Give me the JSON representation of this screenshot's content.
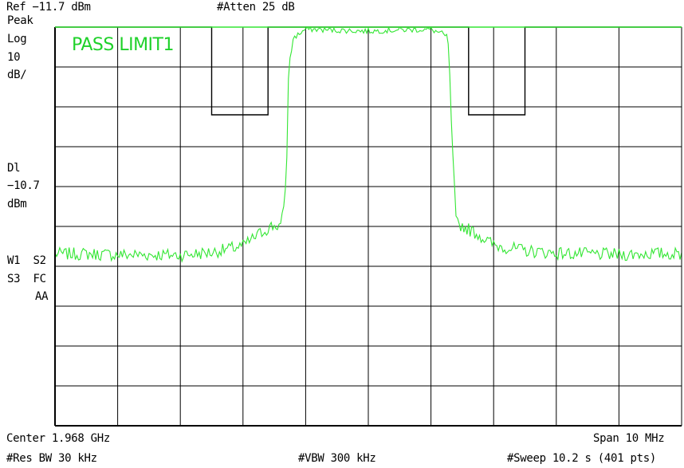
{
  "header": {
    "ref": "Ref −11.7 dBm",
    "atten": "#Atten 25 dB"
  },
  "left_panel": {
    "detector": "Peak",
    "scale_type": "Log",
    "scale_value": "10",
    "scale_unit": "dB/",
    "dl_label": "Dl",
    "dl_value": "−10.7",
    "dl_unit": "dBm",
    "trace_line1": "W1  S2",
    "trace_line2": "S3  FC",
    "trace_line3": "AA"
  },
  "status": {
    "pass_text": "PASS LIMIT1"
  },
  "footer": {
    "center": "Center 1.968 GHz",
    "span": "Span 10 MHz",
    "rbw": "#Res BW 30 kHz",
    "vbw": "#VBW 300 kHz",
    "sweep": "#Sweep 10.2 s (401 pts)"
  },
  "colors": {
    "trace": "#33e633",
    "limit": "#000000",
    "pass_text": "#1fd12a",
    "grid": "#000000"
  },
  "chart_data": {
    "type": "line",
    "title": "",
    "xlabel": "",
    "ylabel": "",
    "x_unit": "MHz offset from center",
    "y_unit": "dBm",
    "xlim": [
      -5,
      5
    ],
    "ylim": [
      -111.7,
      -11.7
    ],
    "grid": true,
    "center_frequency": "1.968 GHz",
    "span": "10 MHz",
    "reference_level": -11.7,
    "display_line": -10.7,
    "scale_db_per_div": 10,
    "series": [
      {
        "name": "",
        "kind": "trace",
        "x": [
          -5.0,
          -4.5,
          -4.0,
          -3.5,
          -3.0,
          -2.5,
          -2.0,
          -1.75,
          -1.55,
          -1.45,
          -1.4,
          -1.35,
          -1.3,
          -1.28,
          -1.2,
          -1.0,
          -0.5,
          0.0,
          0.5,
          1.0,
          1.2,
          1.28,
          1.3,
          1.35,
          1.4,
          1.45,
          1.55,
          1.75,
          2.0,
          2.5,
          3.0,
          3.5,
          4.0,
          4.5,
          5.0
        ],
        "y": [
          -68.6,
          -68.6,
          -68.8,
          -68.8,
          -68.9,
          -68.2,
          -66.6,
          -63.7,
          -61.7,
          -61.5,
          -61.4,
          -58.0,
          -45.0,
          -24.0,
          -14.5,
          -12.2,
          -12.5,
          -12.7,
          -12.4,
          -12.3,
          -13.5,
          -15.5,
          -25.0,
          -45.0,
          -60.5,
          -61.2,
          -62.0,
          -63.7,
          -66.4,
          -67.8,
          -68.4,
          -68.6,
          -68.8,
          -68.5,
          -68.6
        ]
      },
      {
        "name": "",
        "kind": "limit",
        "x": [
          -5.0,
          -2.5,
          -2.5,
          -1.6,
          -1.6,
          1.6,
          1.6,
          2.5,
          2.5,
          5.0
        ],
        "y": [
          -11.7,
          -11.7,
          -33.7,
          -33.7,
          -11.7,
          -11.7,
          -33.7,
          -33.7,
          -11.7,
          -11.7
        ]
      }
    ]
  }
}
